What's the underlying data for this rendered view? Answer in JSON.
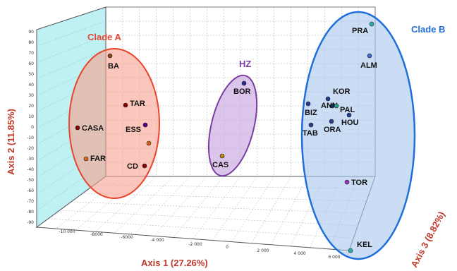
{
  "chart_data": {
    "type": "scatter",
    "projection": "3d",
    "axes": {
      "x": {
        "label": "Axis 1 (27.26%)",
        "ticks": [
          "-10 000",
          "-8000",
          "-6000",
          "-4 000",
          "-2 000",
          "0",
          "2 000",
          "4 000",
          "6 000"
        ]
      },
      "y": {
        "label": "Axis 2 (11.85%)",
        "ticks": [
          "90",
          "80",
          "70",
          "60",
          "50",
          "40",
          "30",
          "20",
          "10",
          "0",
          "-10",
          "-20",
          "-30",
          "-40",
          "-50",
          "-60",
          "-70",
          "-80",
          "-90"
        ]
      },
      "z": {
        "label": "Axis 3 (8.82%)"
      }
    },
    "grid": true,
    "groups": [
      {
        "name": "Clade A",
        "color": "#e8452c",
        "fill": "#f9a08e"
      },
      {
        "name": "HZ",
        "color": "#7b3fa0",
        "fill": "#c9a6e0"
      },
      {
        "name": "Clade B",
        "color": "#1e6fd9",
        "fill": "#a9c6ec"
      }
    ],
    "points": [
      {
        "label": "BA",
        "group": "Clade A",
        "color": "#8b4513"
      },
      {
        "label": "TAR",
        "group": "Clade A",
        "color": "#8b0000"
      },
      {
        "label": "CASA",
        "group": "Clade A",
        "color": "#8b0000"
      },
      {
        "label": "ESS",
        "group": "Clade A",
        "color": "#4b0082"
      },
      {
        "label": "",
        "group": "Clade A",
        "color": "#d2691e"
      },
      {
        "label": "FAR",
        "group": "Clade A",
        "color": "#d2691e"
      },
      {
        "label": "CD",
        "group": "Clade A",
        "color": "#8b0000"
      },
      {
        "label": "BOR",
        "group": "HZ",
        "color": "#2c2c8a"
      },
      {
        "label": "CAS",
        "group": "HZ",
        "color": "#b8860b"
      },
      {
        "label": "PRA",
        "group": "Clade B",
        "color": "#20b2aa"
      },
      {
        "label": "ALM",
        "group": "Clade B",
        "color": "#3a6fd8"
      },
      {
        "label": "KOR",
        "group": "Clade B",
        "color": "#1f3f8f"
      },
      {
        "label": "ANN",
        "group": "Clade B",
        "color": "#1f3f8f"
      },
      {
        "label": "PAL",
        "group": "Clade B",
        "color": "#20a08a"
      },
      {
        "label": "BIZ",
        "group": "Clade B",
        "color": "#1f3f8f"
      },
      {
        "label": "HOU",
        "group": "Clade B",
        "color": "#1f3f8f"
      },
      {
        "label": "ORA",
        "group": "Clade B",
        "color": "#1f3f8f"
      },
      {
        "label": "TAB",
        "group": "Clade B",
        "color": "#1f3f8f"
      },
      {
        "label": "TOR",
        "group": "Clade B",
        "color": "#9b30c0"
      },
      {
        "label": "KEL",
        "group": "Clade B",
        "color": "#20b2aa"
      }
    ]
  }
}
